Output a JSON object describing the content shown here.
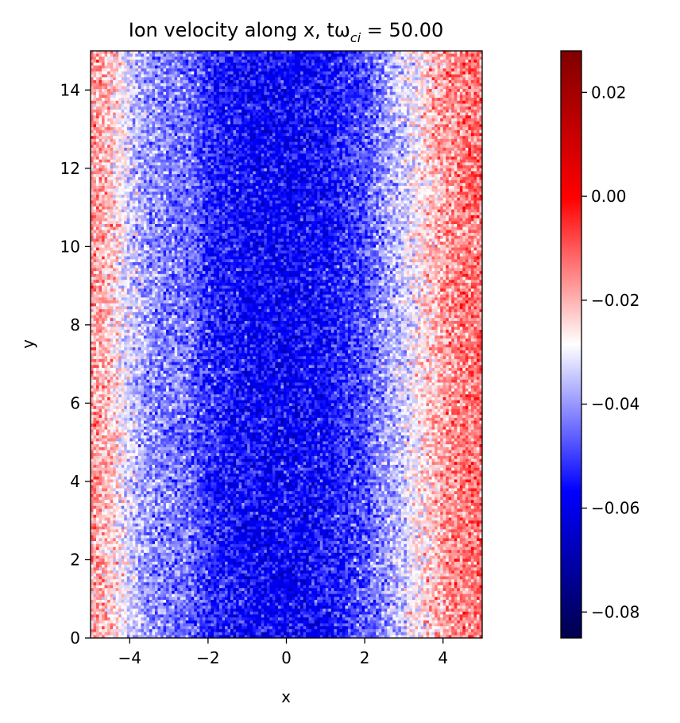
{
  "chart_data": {
    "type": "heatmap",
    "title": "Ion velocity along x, tω",
    "title_subscript": "ci",
    "title_suffix": " = 50.00",
    "xlabel": "x",
    "ylabel": "y",
    "xlim": [
      -5,
      5
    ],
    "ylim": [
      0,
      15
    ],
    "x_ticks": [
      -4,
      -2,
      0,
      2,
      4
    ],
    "x_tick_labels": [
      "−4",
      "−2",
      "0",
      "2",
      "4"
    ],
    "y_ticks": [
      0,
      2,
      4,
      6,
      8,
      10,
      12,
      14
    ],
    "y_tick_labels": [
      "0",
      "2",
      "4",
      "6",
      "8",
      "10",
      "12",
      "14"
    ],
    "colormap": "seismic",
    "colormap_stops": [
      "#00004c",
      "#0000ff",
      "#ffffff",
      "#ff0000",
      "#800000"
    ],
    "colorbar_range": [
      -0.085,
      0.028
    ],
    "colorbar_ticks": [
      0.02,
      0.0,
      -0.02,
      -0.04,
      -0.06,
      -0.08
    ],
    "colorbar_tick_labels": [
      "0.02",
      "0.00",
      "−0.02",
      "−0.04",
      "−0.06",
      "−0.08"
    ],
    "field_profile_x": [
      -5.0,
      -4.5,
      -4.0,
      -3.5,
      -3.0,
      -2.5,
      -2.0,
      -1.0,
      0.0,
      1.0,
      2.0,
      2.5,
      3.0,
      3.5,
      4.0,
      4.5,
      5.0
    ],
    "field_profile_value": [
      -0.017,
      -0.022,
      -0.033,
      -0.04,
      -0.043,
      -0.044,
      -0.052,
      -0.056,
      -0.057,
      -0.055,
      -0.048,
      -0.04,
      -0.033,
      -0.025,
      -0.018,
      -0.014,
      -0.012
    ],
    "noise_amplitude": 0.012,
    "grid": false
  }
}
